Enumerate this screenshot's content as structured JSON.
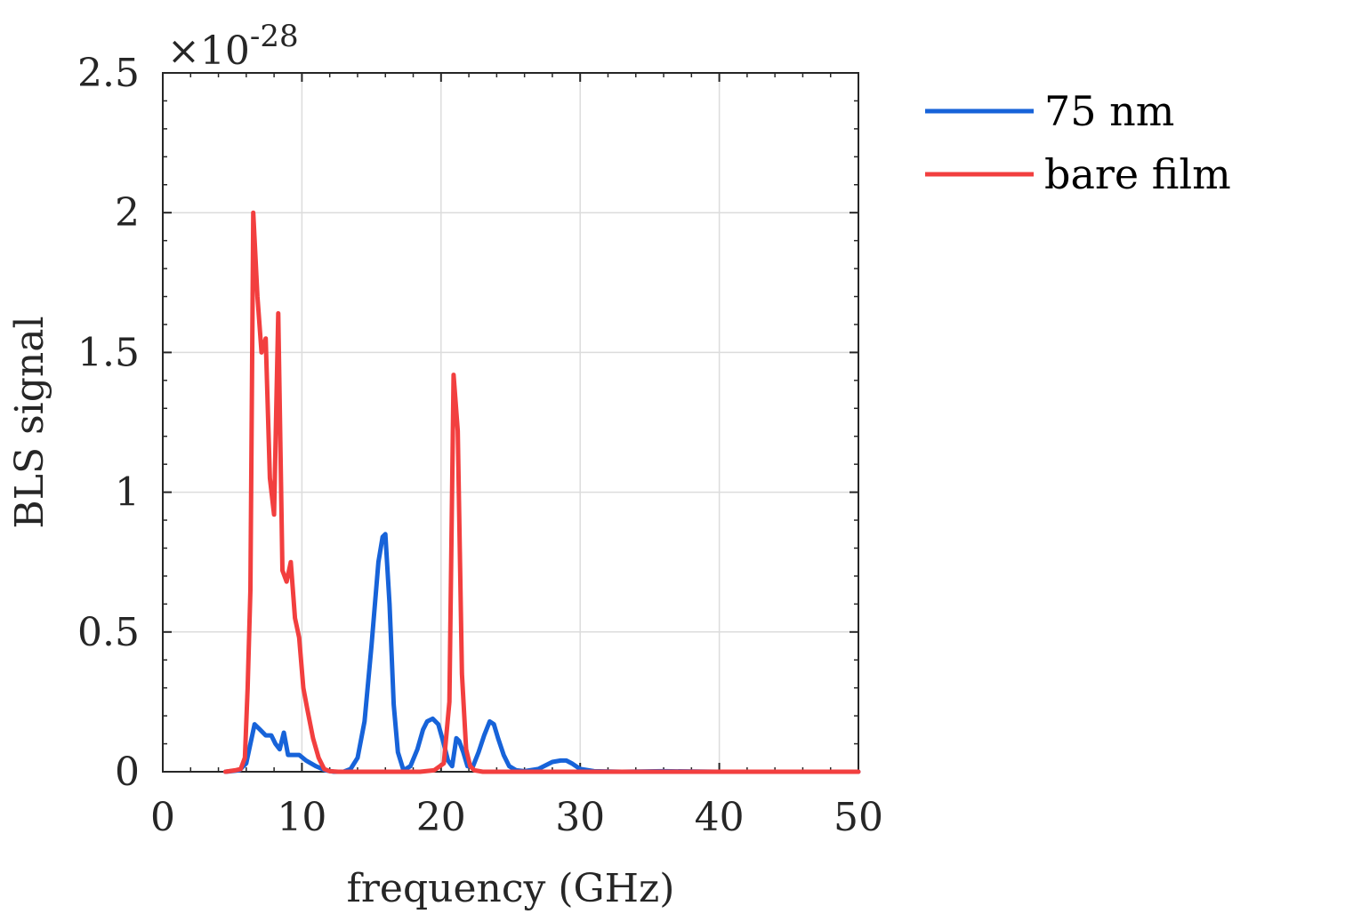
{
  "chart_data": {
    "type": "line",
    "title": "",
    "xlabel": "frequency (GHz)",
    "ylabel": "BLS signal",
    "xlim": [
      0,
      50
    ],
    "ylim": [
      0,
      2.5
    ],
    "y_exponent_label": "×10",
    "y_exponent_power": "-28",
    "x_ticks": [
      "0",
      "10",
      "20",
      "30",
      "40",
      "50"
    ],
    "x_tick_values": [
      0,
      10,
      20,
      30,
      40,
      50
    ],
    "y_ticks": [
      "0",
      "0.5",
      "1",
      "1.5",
      "2",
      "2.5"
    ],
    "y_tick_values": [
      0,
      0.5,
      1,
      1.5,
      2,
      2.5
    ],
    "grid": true,
    "legend_position": "outside-top-right",
    "series": [
      {
        "name": "75 nm",
        "color": "#1763d9",
        "x": [
          4.5,
          5.5,
          6.0,
          6.3,
          6.6,
          7.0,
          7.4,
          7.8,
          8.1,
          8.4,
          8.7,
          9.0,
          9.4,
          9.8,
          10.3,
          11.0,
          11.7,
          12.3,
          13.0,
          13.5,
          14.0,
          14.5,
          15.0,
          15.5,
          15.8,
          16.0,
          16.3,
          16.6,
          16.9,
          17.3,
          17.8,
          18.3,
          18.7,
          19.0,
          19.4,
          19.8,
          20.2,
          20.5,
          20.8,
          21.1,
          21.3,
          21.6,
          21.9,
          22.3,
          22.7,
          23.1,
          23.5,
          23.8,
          24.1,
          24.5,
          24.9,
          25.4,
          26.0,
          27.0,
          28.0,
          28.6,
          29.0,
          29.4,
          30.0,
          31.0,
          33.0,
          36.0,
          40.0,
          45.0,
          50.0
        ],
        "y": [
          0,
          0.005,
          0.03,
          0.1,
          0.17,
          0.15,
          0.13,
          0.13,
          0.1,
          0.08,
          0.14,
          0.06,
          0.06,
          0.06,
          0.04,
          0.02,
          0.005,
          0,
          0.0,
          0.01,
          0.05,
          0.18,
          0.45,
          0.75,
          0.84,
          0.85,
          0.6,
          0.24,
          0.07,
          0.005,
          0.02,
          0.08,
          0.15,
          0.18,
          0.19,
          0.17,
          0.1,
          0.04,
          0.02,
          0.12,
          0.11,
          0.07,
          0.02,
          0.02,
          0.07,
          0.13,
          0.18,
          0.17,
          0.12,
          0.06,
          0.02,
          0.005,
          0.002,
          0.01,
          0.035,
          0.04,
          0.04,
          0.03,
          0.01,
          0.002,
          0,
          0.002,
          0,
          0,
          0
        ]
      },
      {
        "name": "bare film",
        "color": "#f23f3f",
        "x": [
          4.5,
          5.2,
          5.6,
          5.9,
          6.1,
          6.3,
          6.5,
          6.8,
          7.1,
          7.4,
          7.7,
          8.0,
          8.3,
          8.6,
          8.9,
          9.2,
          9.5,
          9.8,
          10.1,
          10.4,
          10.8,
          11.2,
          11.6,
          12.0,
          12.6,
          13.5,
          15.0,
          17.0,
          18.5,
          19.5,
          20.2,
          20.6,
          20.9,
          21.2,
          21.5,
          21.8,
          22.1,
          22.4,
          23.0,
          24.0,
          26.0,
          30.0,
          35.0,
          40.0,
          45.0,
          50.0
        ],
        "y": [
          0,
          0.005,
          0.01,
          0.05,
          0.3,
          0.65,
          2.0,
          1.7,
          1.5,
          1.55,
          1.05,
          0.92,
          1.64,
          0.72,
          0.68,
          0.75,
          0.55,
          0.48,
          0.3,
          0.22,
          0.12,
          0.05,
          0.01,
          0.002,
          0,
          0,
          0,
          0,
          0,
          0.005,
          0.03,
          0.25,
          1.42,
          1.22,
          0.35,
          0.08,
          0.02,
          0.005,
          0,
          0,
          0,
          0,
          0,
          0,
          0,
          0
        ]
      }
    ]
  }
}
